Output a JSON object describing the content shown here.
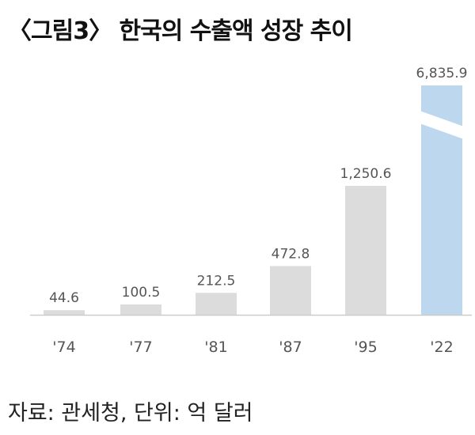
{
  "title": "〈그림3〉 한국의 수출액 성장 추이",
  "source": "자료: 관세청, 단위: 억 달러",
  "chart_data": {
    "type": "bar",
    "categories": [
      "'74",
      "'77",
      "'81",
      "'87",
      "'95",
      "'22"
    ],
    "values": [
      44.6,
      100.5,
      212.5,
      472.8,
      1250.6,
      6835.9
    ],
    "value_labels": [
      "44.6",
      "100.5",
      "212.5",
      "472.8",
      "1,250.6",
      "6,835.9"
    ],
    "axis_break": true,
    "highlight_index": 5,
    "colors": {
      "bar": "#dcdcdc",
      "highlight": "#bdd7ee",
      "axis": "#cccccc",
      "label": "#555555"
    }
  }
}
